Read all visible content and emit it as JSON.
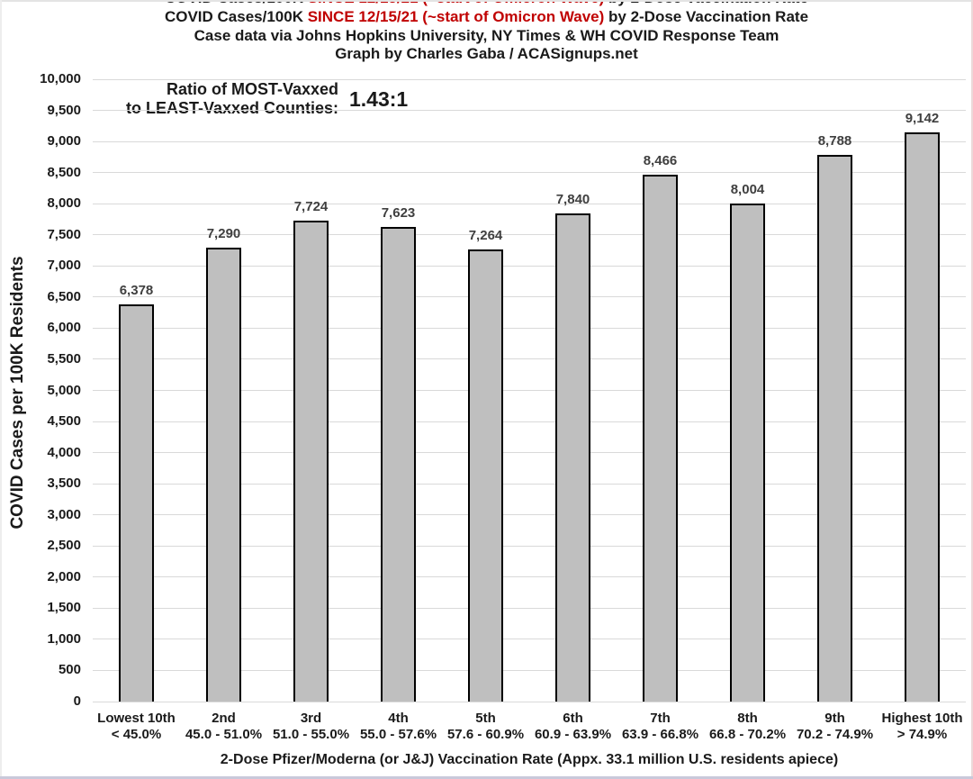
{
  "header": {
    "title_part1": "COVID Cases/100K ",
    "title_red": "SINCE 12/15/21 (~start of Omicron Wave)",
    "title_part2": " by 2-Dose Vaccination Rate",
    "title_full": "COVID Cases/100K SINCE 12/15/21 (~start of Omicron Wave) by 2-Dose Vaccination Rate",
    "subtitle1": "Case data via Johns Hopkins University, NY Times & WH COVID Response Team",
    "subtitle2": "Graph by Charles Gaba / ACASignups.net"
  },
  "annotation": {
    "line1": "Ratio of MOST-Vaxxed",
    "line2": "to LEAST-Vaxxed Counties:",
    "ratio": "1.43:1"
  },
  "colors": {
    "bar_fill": "#bfbfbf",
    "bar_border": "#000000",
    "title_red": "#c00000",
    "gridline": "#d9d9d9",
    "value_label": "#3f3f3f"
  },
  "chart_data": {
    "type": "bar",
    "title": "COVID Cases/100K SINCE 12/15/21 (~start of Omicron Wave) by 2-Dose Vaccination Rate",
    "categories": [
      {
        "tier": "Lowest 10th",
        "range": "< 45.0%"
      },
      {
        "tier": "2nd",
        "range": "45.0 - 51.0%"
      },
      {
        "tier": "3rd",
        "range": "51.0 - 55.0%"
      },
      {
        "tier": "4th",
        "range": "55.0 - 57.6%"
      },
      {
        "tier": "5th",
        "range": "57.6 - 60.9%"
      },
      {
        "tier": "6th",
        "range": "60.9 - 63.9%"
      },
      {
        "tier": "7th",
        "range": "63.9 - 66.8%"
      },
      {
        "tier": "8th",
        "range": "66.8 - 70.2%"
      },
      {
        "tier": "9th",
        "range": "70.2 - 74.9%"
      },
      {
        "tier": "Highest 10th",
        "range": "> 74.9%"
      }
    ],
    "values": [
      6378,
      7290,
      7724,
      7623,
      7264,
      7840,
      8466,
      8004,
      8788,
      9142
    ],
    "value_labels": [
      "6,378",
      "7,290",
      "7,724",
      "7,623",
      "7,264",
      "7,840",
      "8,466",
      "8,004",
      "8,788",
      "9,142"
    ],
    "xlabel": "2-Dose Pfizer/Moderna (or  J&J) Vaccination Rate (Appx. 33.1 million U.S. residents apiece)",
    "ylabel": "COVID Cases per 100K Residents",
    "ylim": [
      0,
      10000
    ],
    "ytick_step": 500,
    "grid": true,
    "legend": false
  }
}
